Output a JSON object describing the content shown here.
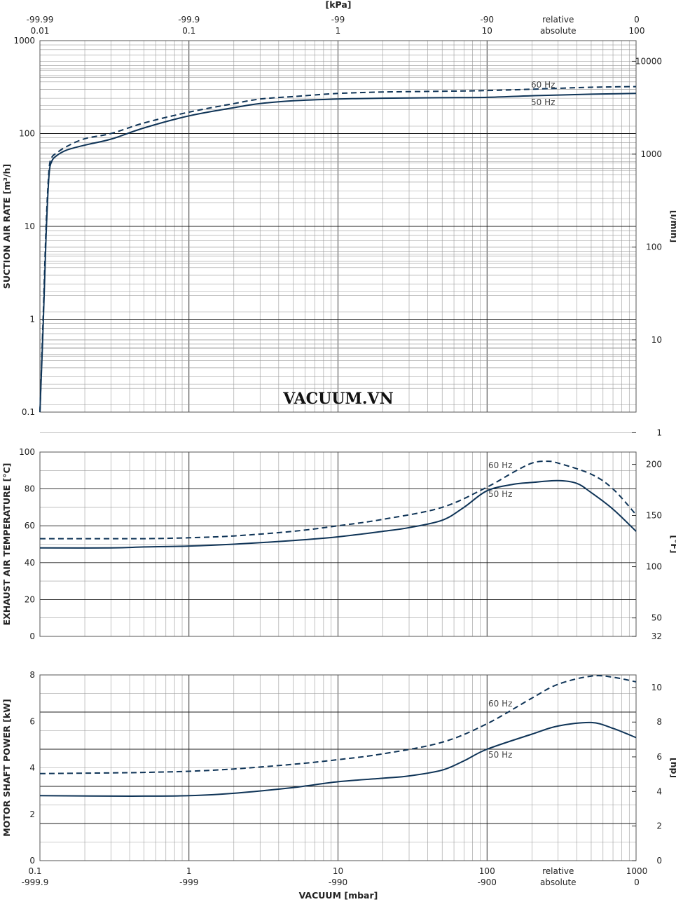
{
  "chart_data": [
    {
      "type": "line",
      "panel": "suction",
      "ylabel": "SUCTION AIR RATE",
      "yunit": "[m³/h]",
      "y2unit": "[l/min]",
      "top_axis_label": "[kPa]",
      "xscale": "log",
      "yscale": "log",
      "xlim": [
        0.1,
        1000
      ],
      "ylim": [
        0.1,
        1000
      ],
      "top_ticks": [
        {
          "x": 0.1,
          "rel": "-99.99",
          "abs": "0.01"
        },
        {
          "x": 1,
          "rel": "-99.9",
          "abs": "0.1"
        },
        {
          "x": 10,
          "rel": "-99",
          "abs": "1"
        },
        {
          "x": 100,
          "rel": "-90",
          "abs": "10"
        },
        {
          "x": 300,
          "rel": "relative",
          "abs": "absolute"
        },
        {
          "x": 1000,
          "rel": "0",
          "abs": "100"
        }
      ],
      "yticks": [
        {
          "v": 0.1,
          "label": "0.1"
        },
        {
          "v": 1,
          "label": "1"
        },
        {
          "v": 10,
          "label": "10"
        },
        {
          "v": 100,
          "label": "100"
        },
        {
          "v": 1000,
          "label": "1000"
        }
      ],
      "y2ticks": [
        {
          "v": 0.06,
          "label": "1"
        },
        {
          "v": 0.6,
          "label": "10"
        },
        {
          "v": 6,
          "label": "100"
        },
        {
          "v": 60,
          "label": "1000"
        },
        {
          "v": 600,
          "label": "10000"
        }
      ],
      "series": [
        {
          "name": "60 Hz",
          "style": "dashed",
          "x": [
            0.1,
            0.105,
            0.11,
            0.115,
            0.12,
            0.13,
            0.15,
            0.2,
            0.3,
            0.5,
            1,
            2,
            3,
            5,
            10,
            20,
            50,
            100,
            200,
            500,
            1000
          ],
          "y": [
            0.1,
            1,
            10,
            40,
            55,
            62,
            72,
            88,
            100,
            130,
            170,
            210,
            235,
            250,
            270,
            280,
            285,
            290,
            300,
            315,
            320
          ]
        },
        {
          "name": "50 Hz",
          "style": "solid",
          "x": [
            0.1,
            0.105,
            0.11,
            0.115,
            0.12,
            0.13,
            0.15,
            0.2,
            0.3,
            0.5,
            1,
            2,
            3,
            5,
            10,
            20,
            50,
            100,
            200,
            500,
            1000
          ],
          "y": [
            0.1,
            0.8,
            8,
            35,
            50,
            58,
            66,
            75,
            87,
            115,
            155,
            190,
            210,
            225,
            235,
            240,
            243,
            245,
            255,
            265,
            270
          ]
        }
      ],
      "annotations": [
        "VACUUM.VN"
      ]
    },
    {
      "type": "line",
      "panel": "temperature",
      "ylabel": "EXHAUST AIR TEMPERATURE",
      "yunit": "[°C]",
      "y2unit": "[°F]",
      "xscale": "log",
      "xlim": [
        0.1,
        1000
      ],
      "ylim": [
        0,
        100
      ],
      "yticks": [
        {
          "v": 0,
          "label": "0"
        },
        {
          "v": 20,
          "label": "20"
        },
        {
          "v": 40,
          "label": "40"
        },
        {
          "v": 60,
          "label": "60"
        },
        {
          "v": 80,
          "label": "80"
        },
        {
          "v": 100,
          "label": "100"
        }
      ],
      "y2ticks": [
        {
          "v": 0,
          "label": "32"
        },
        {
          "v": 10,
          "label": "50"
        },
        {
          "v": 37.8,
          "label": "100"
        },
        {
          "v": 65.6,
          "label": "150"
        },
        {
          "v": 93.3,
          "label": "200"
        }
      ],
      "series": [
        {
          "name": "60 Hz",
          "style": "dashed",
          "x": [
            0.1,
            0.3,
            0.5,
            1,
            2,
            5,
            10,
            20,
            50,
            100,
            150,
            200,
            250,
            300,
            500,
            700,
            1000
          ],
          "y": [
            53,
            53,
            53,
            53.5,
            54.5,
            57,
            60,
            63.5,
            70,
            81,
            89,
            94,
            95,
            94,
            88,
            80,
            66
          ]
        },
        {
          "name": "50 Hz",
          "style": "solid",
          "x": [
            0.1,
            0.3,
            0.5,
            1,
            2,
            5,
            10,
            20,
            30,
            50,
            70,
            100,
            150,
            200,
            300,
            400,
            500,
            700,
            1000
          ],
          "y": [
            48,
            48,
            48.5,
            49,
            50,
            52,
            54,
            57,
            59,
            63,
            70,
            79,
            82.5,
            83.5,
            84.5,
            83,
            78,
            69,
            57
          ]
        }
      ]
    },
    {
      "type": "line",
      "panel": "power",
      "ylabel": "MOTOR SHAFT POWER",
      "yunit": "[kW]",
      "y2unit": "[hp]",
      "xlabel": "VACUUM",
      "xunit": "[mbar]",
      "xscale": "log",
      "xlim": [
        0.1,
        1000
      ],
      "ylim": [
        0,
        8
      ],
      "xticks": [
        {
          "x": 0.1,
          "abs": "0.1",
          "rel": "-999.9"
        },
        {
          "x": 1,
          "abs": "1",
          "rel": "-999"
        },
        {
          "x": 10,
          "abs": "10",
          "rel": "-990"
        },
        {
          "x": 100,
          "abs": "100",
          "rel": "-900"
        },
        {
          "x": 300,
          "abs": "relative",
          "rel": "absolute"
        },
        {
          "x": 1000,
          "abs": "1000",
          "rel": "0"
        }
      ],
      "yticks": [
        {
          "v": 0,
          "label": "0"
        },
        {
          "v": 2,
          "label": "2"
        },
        {
          "v": 4,
          "label": "4"
        },
        {
          "v": 6,
          "label": "6"
        },
        {
          "v": 8,
          "label": "8"
        }
      ],
      "y2ticks": [
        {
          "v": 0,
          "label": "0"
        },
        {
          "v": 1.49,
          "label": "2"
        },
        {
          "v": 2.98,
          "label": "4"
        },
        {
          "v": 4.47,
          "label": "6"
        },
        {
          "v": 5.97,
          "label": "8"
        },
        {
          "v": 7.46,
          "label": "10"
        }
      ],
      "series": [
        {
          "name": "60 Hz",
          "style": "dashed",
          "x": [
            0.1,
            0.3,
            0.5,
            1,
            2,
            5,
            10,
            20,
            50,
            100,
            200,
            300,
            500,
            700,
            1000
          ],
          "y": [
            3.75,
            3.78,
            3.8,
            3.85,
            3.95,
            4.15,
            4.35,
            4.6,
            5.1,
            5.9,
            7.0,
            7.6,
            7.95,
            7.9,
            7.7
          ]
        },
        {
          "name": "50 Hz",
          "style": "solid",
          "x": [
            0.1,
            0.3,
            0.5,
            1,
            2,
            5,
            10,
            20,
            30,
            50,
            70,
            100,
            200,
            300,
            500,
            700,
            1000
          ],
          "y": [
            2.8,
            2.78,
            2.78,
            2.8,
            2.9,
            3.15,
            3.4,
            3.55,
            3.65,
            3.9,
            4.3,
            4.8,
            5.45,
            5.8,
            5.95,
            5.7,
            5.3
          ]
        }
      ]
    }
  ]
}
